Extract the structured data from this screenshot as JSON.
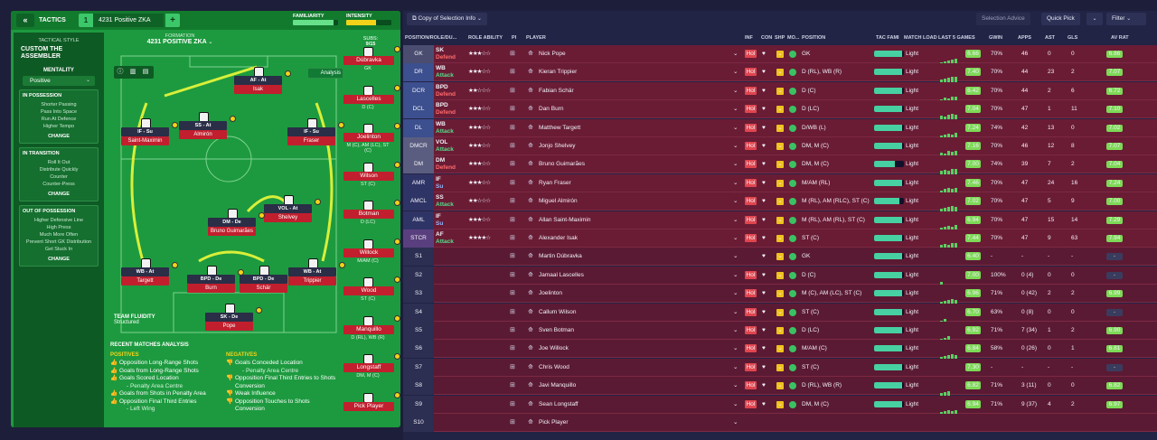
{
  "left": {
    "tactics_label": "TACTICS",
    "tactic_number": "1",
    "tactic_name": "4231 Positive ZKA",
    "familiarity_label": "FAMILIARITY",
    "intensity_label": "INTENSITY",
    "familiarity": 0.9,
    "intensity": 0.65,
    "tactical_style_label": "TACTICAL STYLE",
    "tactical_style": "CUSTOM THE ASSEMBLER",
    "mentality_label": "MENTALITY",
    "mentality": "Positive",
    "in_possession": {
      "title": "IN POSSESSION",
      "items": [
        "Shorter Passing",
        "Pass Into Space",
        "Run At Defence",
        "Higher Tempo"
      ],
      "change": "CHANGE"
    },
    "in_transition": {
      "title": "IN TRANSITION",
      "items": [
        "Roll It Out",
        "Distribute Quickly",
        "Counter",
        "Counter-Press"
      ],
      "change": "CHANGE"
    },
    "out_of_possession": {
      "title": "OUT OF POSSESSION",
      "items": [
        "Higher Defensive Line",
        "High Press",
        "Much More Often",
        "Prevent Short GK Distribution",
        "Get Stuck In"
      ],
      "change": "CHANGE"
    },
    "formation_label": "FORMATION",
    "formation": "4231 POSITIVE ZKA",
    "subs_label": "SUBS:",
    "subs_count": "9/15",
    "analysis_label": "Analysis",
    "team_fluidity_label": "TEAM FLUIDITY",
    "team_fluidity": "Structured",
    "recent_analysis": "RECENT MATCHES ANALYSIS",
    "positives_label": "POSITIVES",
    "positives": [
      "Opposition Long-Range Shots",
      "Goals from Long-Range Shots",
      "Goals Scored Location",
      "- Penalty Area Centre",
      "Goals from Shots in Penalty Area",
      "Opposition Final Third Entries",
      "- Left Wing"
    ],
    "negatives_label": "NEGATIVES",
    "negatives": [
      "Goals Conceded Location",
      "- Penalty Area Centre",
      "Opposition Final Third Entries to Shots Conversion",
      "Weak Influence",
      "Opposition Touches to Shots Conversion"
    ],
    "pitch_players": [
      {
        "role": "AF - At",
        "name": "Isak"
      },
      {
        "role": "IF - Su",
        "name": "Saint-Maximin"
      },
      {
        "role": "SS - At",
        "name": "Almirón"
      },
      {
        "role": "IF - Su",
        "name": "Fraser"
      },
      {
        "role": "VOL - At",
        "name": "Shelvey"
      },
      {
        "role": "DM - De",
        "name": "Bruno Guimarães"
      },
      {
        "role": "WB - At",
        "name": "Targett"
      },
      {
        "role": "BPD - De",
        "name": "Burn"
      },
      {
        "role": "BPD - De",
        "name": "Schär"
      },
      {
        "role": "WB - At",
        "name": "Trippier"
      },
      {
        "role": "SK - De",
        "name": "Pope"
      }
    ],
    "subs": [
      {
        "name": "Dúbravka",
        "pos": "GK"
      },
      {
        "name": "Lascelles",
        "pos": "D (C)"
      },
      {
        "name": "Joelinton",
        "pos": "M (C), AM (LC), ST (C)"
      },
      {
        "name": "Wilson",
        "pos": "ST (C)"
      },
      {
        "name": "Botman",
        "pos": "D (LC)"
      },
      {
        "name": "Willock",
        "pos": "M/AM (C)"
      },
      {
        "name": "Wood",
        "pos": "ST (C)"
      },
      {
        "name": "Manquillo",
        "pos": "D (RL), WB (R)"
      },
      {
        "name": "Longstaff",
        "pos": "DM, M (C)"
      },
      {
        "name": "Pick Player",
        "pos": ""
      }
    ]
  },
  "right": {
    "copy_btn": "Copy of Selection Info",
    "selection_advice": "Selection Advice",
    "quick_pick": "Quick Pick",
    "filter": "Filter",
    "headers": [
      "POSITION/ROLE/DU...",
      "ROLE ABILITY",
      "PI",
      "PLAYER",
      "INF",
      "CON",
      "SHP",
      "MO...",
      "POSITION",
      "TAC FAMI",
      "MATCH LOAD",
      "LAST 5 GAMES",
      "GWIN",
      "APPS",
      "AST",
      "GLS",
      "AV RAT"
    ],
    "rows": [
      {
        "pos": "GK",
        "role": "SK",
        "duty": "Defend",
        "stars": "★★★☆☆",
        "player": "Nick Pope",
        "inf": "Hol",
        "position": "GK",
        "tac": 0.95,
        "load": "Light",
        "form": [
          6,
          7,
          8,
          9,
          10
        ],
        "rating": "6.66",
        "gwin": "70%",
        "apps": "46",
        "ast": "0",
        "gls": "0",
        "av": "6.86"
      },
      {
        "pos": "DR",
        "role": "WB",
        "duty": "Attack",
        "stars": "★★★☆☆",
        "player": "Kieran Trippier",
        "inf": "Hol",
        "position": "D (RL), WB (R)",
        "tac": 0.95,
        "load": "Light",
        "form": [
          7,
          8,
          9,
          10,
          10
        ],
        "rating": "7.40",
        "gwin": "70%",
        "apps": "44",
        "ast": "23",
        "gls": "2",
        "av": "7.07"
      },
      {
        "pos": "DCR",
        "role": "BPD",
        "duty": "Defend",
        "stars": "★★☆☆☆",
        "player": "Fabian Schär",
        "inf": "Hol",
        "position": "D (C)",
        "tac": 0.95,
        "load": "Light",
        "form": [
          6,
          8,
          7,
          9,
          9
        ],
        "rating": "6.42",
        "gwin": "70%",
        "apps": "44",
        "ast": "2",
        "gls": "6",
        "av": "6.72"
      },
      {
        "pos": "DCL",
        "role": "BPD",
        "duty": "Defend",
        "stars": "★★★☆☆",
        "player": "Dan Burn",
        "inf": "Hol",
        "position": "D (LC)",
        "tac": 0.95,
        "load": "Light",
        "form": [
          8,
          7,
          9,
          10,
          9
        ],
        "rating": "7.04",
        "gwin": "70%",
        "apps": "47",
        "ast": "1",
        "gls": "11",
        "av": "7.10"
      },
      {
        "pos": "DL",
        "role": "WB",
        "duty": "Attack",
        "stars": "★★★☆☆",
        "player": "Matthew Targett",
        "inf": "Hol",
        "position": "D/WB (L)",
        "tac": 0.95,
        "load": "Light",
        "form": [
          7,
          8,
          9,
          8,
          10
        ],
        "rating": "7.24",
        "gwin": "74%",
        "apps": "42",
        "ast": "13",
        "gls": "0",
        "av": "7.02"
      },
      {
        "pos": "DMCR",
        "role": "VOL",
        "duty": "Attack",
        "stars": "★★★☆☆",
        "player": "Jonjo Shelvey",
        "inf": "Hol",
        "position": "DM, M (C)",
        "tac": 0.95,
        "load": "Light",
        "form": [
          8,
          7,
          10,
          9,
          10
        ],
        "rating": "7.16",
        "gwin": "70%",
        "apps": "46",
        "ast": "12",
        "gls": "8",
        "av": "7.07"
      },
      {
        "pos": "DM",
        "role": "DM",
        "duty": "Defend",
        "stars": "★★★☆☆",
        "player": "Bruno Guimarães",
        "inf": "Hol",
        "position": "DM, M (C)",
        "tac": 0.7,
        "load": "Light",
        "form": [
          8,
          9,
          8,
          10,
          10
        ],
        "rating": "7.00",
        "gwin": "74%",
        "apps": "39",
        "ast": "7",
        "gls": "2",
        "av": "7.04"
      },
      {
        "pos": "AMR",
        "role": "IF",
        "duty": "Su",
        "stars": "★★★☆☆",
        "player": "Ryan Fraser",
        "inf": "Hol",
        "position": "M/AM (RL)",
        "tac": 0.95,
        "load": "Light",
        "form": [
          7,
          9,
          10,
          9,
          10
        ],
        "rating": "7.46",
        "gwin": "70%",
        "apps": "47",
        "ast": "24",
        "gls": "16",
        "av": "7.24"
      },
      {
        "pos": "AMCL",
        "role": "SS",
        "duty": "Attack",
        "stars": "★★☆☆☆",
        "player": "Miguel Almirón",
        "inf": "Hol",
        "position": "M (RL), AM (RLC), ST (C)",
        "tac": 0.85,
        "load": "Light",
        "form": [
          7,
          8,
          9,
          10,
          9
        ],
        "rating": "7.02",
        "gwin": "70%",
        "apps": "47",
        "ast": "5",
        "gls": "9",
        "av": "7.00"
      },
      {
        "pos": "AML",
        "role": "IF",
        "duty": "Su",
        "stars": "★★★☆☆",
        "player": "Allan Saint-Maximin",
        "inf": "Hol",
        "position": "M (RL), AM (RL), ST (C)",
        "tac": 0.95,
        "load": "Light",
        "form": [
          7,
          8,
          9,
          8,
          10
        ],
        "rating": "6.94",
        "gwin": "70%",
        "apps": "47",
        "ast": "15",
        "gls": "14",
        "av": "7.29"
      },
      {
        "pos": "STCR",
        "role": "AF",
        "duty": "Attack",
        "stars": "★★★★☆",
        "player": "Alexander Isak",
        "inf": "Hol",
        "position": "ST (C)",
        "tac": 0.95,
        "load": "Light",
        "form": [
          8,
          9,
          8,
          10,
          10
        ],
        "rating": "7.44",
        "gwin": "70%",
        "apps": "47",
        "ast": "9",
        "gls": "63",
        "av": "7.94"
      },
      {
        "pos": "S1",
        "role": "",
        "duty": "",
        "stars": "",
        "player": "Martin Dúbravka",
        "inf": "",
        "position": "GK",
        "tac": 0.95,
        "load": "Light",
        "form": [],
        "rating": "6.40",
        "gwin": "-",
        "apps": "-",
        "ast": "-",
        "gls": "-",
        "av": "-"
      },
      {
        "pos": "S2",
        "role": "",
        "duty": "",
        "stars": "",
        "player": "Jamaal Lascelles",
        "inf": "Hol",
        "position": "D (C)",
        "tac": 0.95,
        "load": "Light",
        "form": [
          8
        ],
        "rating": "7.00",
        "gwin": "100%",
        "apps": "0 (4)",
        "ast": "0",
        "gls": "0",
        "av": "-"
      },
      {
        "pos": "S3",
        "role": "",
        "duty": "",
        "stars": "",
        "player": "Joelinton",
        "inf": "Hol",
        "position": "M (C), AM (LC), ST (C)",
        "tac": 0.95,
        "load": "Light",
        "form": [
          6,
          7,
          8,
          9,
          8
        ],
        "rating": "6.96",
        "gwin": "71%",
        "apps": "0 (42)",
        "ast": "2",
        "gls": "2",
        "av": "6.99"
      },
      {
        "pos": "S4",
        "role": "",
        "duty": "",
        "stars": "",
        "player": "Callum Wilson",
        "inf": "Hol",
        "position": "ST (C)",
        "tac": 0.95,
        "load": "Light",
        "form": [
          6,
          8
        ],
        "rating": "6.70",
        "gwin": "63%",
        "apps": "0 (8)",
        "ast": "0",
        "gls": "0",
        "av": "-"
      },
      {
        "pos": "S5",
        "role": "",
        "duty": "",
        "stars": "",
        "player": "Sven Botman",
        "inf": "Hol",
        "position": "D (LC)",
        "tac": 0.95,
        "load": "Light",
        "form": [
          6,
          7,
          9
        ],
        "rating": "6.92",
        "gwin": "71%",
        "apps": "7 (34)",
        "ast": "1",
        "gls": "2",
        "av": "6.90"
      },
      {
        "pos": "S6",
        "role": "",
        "duty": "",
        "stars": "",
        "player": "Joe Willock",
        "inf": "Hol",
        "position": "M/AM (C)",
        "tac": 0.95,
        "load": "Light",
        "form": [
          6,
          7,
          8,
          9,
          8
        ],
        "rating": "6.84",
        "gwin": "58%",
        "apps": "0 (26)",
        "ast": "0",
        "gls": "1",
        "av": "6.81"
      },
      {
        "pos": "S7",
        "role": "",
        "duty": "",
        "stars": "",
        "player": "Chris Wood",
        "inf": "Hol",
        "position": "ST (C)",
        "tac": 0.95,
        "load": "Light",
        "form": [],
        "rating": "7.30",
        "gwin": "-",
        "apps": "-",
        "ast": "-",
        "gls": "-",
        "av": "-"
      },
      {
        "pos": "S8",
        "role": "",
        "duty": "",
        "stars": "",
        "player": "Javi Manquillo",
        "inf": "Hol",
        "position": "D (RL), WB (R)",
        "tac": 0.95,
        "load": "Light",
        "form": [
          7,
          8,
          9
        ],
        "rating": "6.82",
        "gwin": "71%",
        "apps": "3 (11)",
        "ast": "0",
        "gls": "0",
        "av": "6.82"
      },
      {
        "pos": "S9",
        "role": "",
        "duty": "",
        "stars": "",
        "player": "Sean Longstaff",
        "inf": "Hol",
        "position": "DM, M (C)",
        "tac": 0.95,
        "load": "Light",
        "form": [
          7,
          8,
          9,
          8,
          9
        ],
        "rating": "6.94",
        "gwin": "71%",
        "apps": "9 (37)",
        "ast": "4",
        "gls": "2",
        "av": "6.97"
      },
      {
        "pos": "S10",
        "role": "",
        "duty": "",
        "stars": "",
        "player": "Pick Player",
        "inf": "",
        "position": "",
        "tac": 0,
        "load": "",
        "form": [],
        "rating": "",
        "gwin": "",
        "apps": "",
        "ast": "",
        "gls": "",
        "av": ""
      }
    ]
  }
}
